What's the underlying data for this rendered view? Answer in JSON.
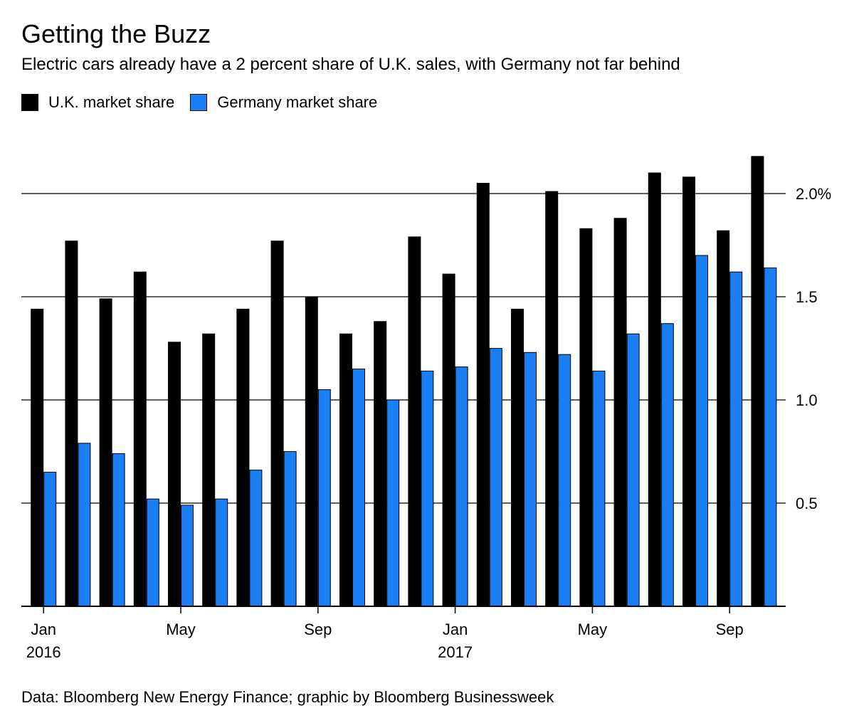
{
  "colors": {
    "uk": "#000000",
    "germany": "#1a7ff5",
    "background": "#ffffff",
    "gridline": "#000000"
  },
  "chart_data": {
    "type": "bar",
    "title": "Getting the Buzz",
    "subtitle": "Electric cars already have a 2 percent share of U.K. sales, with Germany not far behind",
    "source": "Data: Bloomberg New Energy Finance; graphic by Bloomberg Businessweek",
    "legend_position": "top-left",
    "grid": true,
    "y_axis_side": "right",
    "ylim": [
      0,
      2.3
    ],
    "y_ticks": [
      {
        "value": 0.5,
        "label": "0.5"
      },
      {
        "value": 1.0,
        "label": "1.0"
      },
      {
        "value": 1.5,
        "label": "1.5"
      },
      {
        "value": 2.0,
        "label": "2.0%"
      }
    ],
    "categories": [
      "Jan 2016",
      "Feb 2016",
      "Mar 2016",
      "Apr 2016",
      "May 2016",
      "Jun 2016",
      "Jul 2016",
      "Aug 2016",
      "Sep 2016",
      "Oct 2016",
      "Nov 2016",
      "Dec 2016",
      "Jan 2017",
      "Feb 2017",
      "Mar 2017",
      "Apr 2017",
      "May 2017",
      "Jun 2017",
      "Jul 2017",
      "Aug 2017",
      "Sep 2017",
      "Oct 2017"
    ],
    "x_tick_labels": [
      {
        "index": 0,
        "month": "Jan",
        "year": "2016"
      },
      {
        "index": 4,
        "month": "May",
        "year": ""
      },
      {
        "index": 8,
        "month": "Sep",
        "year": ""
      },
      {
        "index": 12,
        "month": "Jan",
        "year": "2017"
      },
      {
        "index": 16,
        "month": "May",
        "year": ""
      },
      {
        "index": 20,
        "month": "Sep",
        "year": ""
      }
    ],
    "series": [
      {
        "name": "U.K. market share",
        "values": [
          1.44,
          1.77,
          1.49,
          1.62,
          1.28,
          1.32,
          1.44,
          1.77,
          1.5,
          1.32,
          1.38,
          1.79,
          1.61,
          2.05,
          1.44,
          2.01,
          1.83,
          1.88,
          2.1,
          2.08,
          1.82,
          2.18
        ]
      },
      {
        "name": "Germany market share",
        "values": [
          0.65,
          0.79,
          0.74,
          0.52,
          0.49,
          0.52,
          0.66,
          0.75,
          1.05,
          1.15,
          1.0,
          1.14,
          1.16,
          1.25,
          1.23,
          1.22,
          1.14,
          1.32,
          1.37,
          1.7,
          1.62,
          1.64
        ]
      }
    ]
  }
}
